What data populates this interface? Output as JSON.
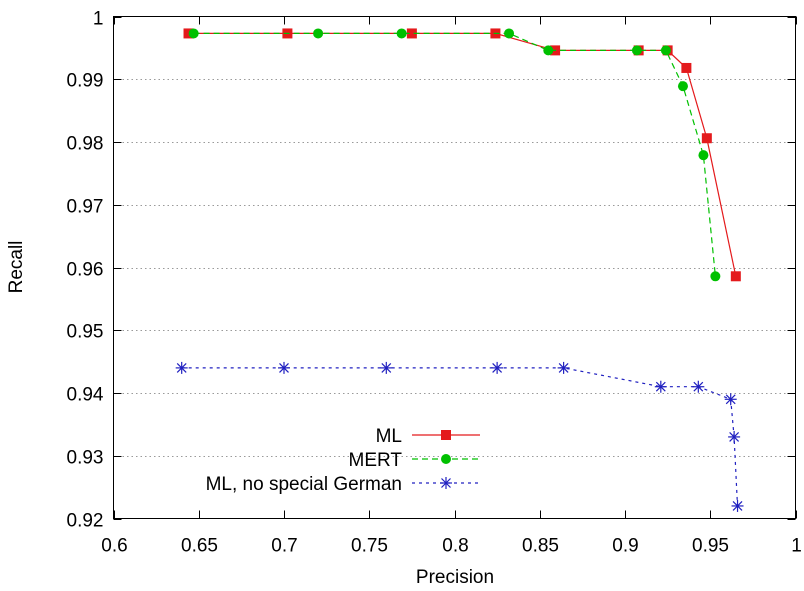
{
  "chart_data": {
    "type": "line",
    "xlabel": "Precision",
    "ylabel": "Recall",
    "xlim": [
      0.6,
      1.0
    ],
    "ylim": [
      0.92,
      1.0
    ],
    "x_ticks": [
      0.6,
      0.65,
      0.7,
      0.75,
      0.8,
      0.85,
      0.9,
      0.95,
      1.0
    ],
    "x_tick_labels": [
      "0.6",
      "0.65",
      "0.7",
      "0.75",
      "0.8",
      "0.85",
      "0.9",
      "0.95",
      "1"
    ],
    "y_ticks": [
      0.92,
      0.93,
      0.94,
      0.95,
      0.96,
      0.97,
      0.98,
      0.99,
      1.0
    ],
    "y_tick_labels": [
      "0.92",
      "0.93",
      "0.94",
      "0.95",
      "0.96",
      "0.97",
      "0.98",
      "0.99",
      "1"
    ],
    "grid": "horizontal dotted",
    "legend_position": "bottom-left",
    "series": [
      {
        "name": "ML",
        "color": "#e41a1c",
        "line": "solid",
        "marker": "square",
        "x": [
          0.644,
          0.702,
          0.775,
          0.824,
          0.859,
          0.908,
          0.925,
          0.936,
          0.948,
          0.965
        ],
        "y": [
          0.9973,
          0.9973,
          0.9973,
          0.9973,
          0.9946,
          0.9946,
          0.9946,
          0.9918,
          0.9806,
          0.9586
        ]
      },
      {
        "name": "MERT",
        "color": "#00c000",
        "line": "dashed",
        "marker": "circle",
        "x": [
          0.647,
          0.72,
          0.769,
          0.832,
          0.855,
          0.907,
          0.924,
          0.934,
          0.946,
          0.953
        ],
        "y": [
          0.9973,
          0.9973,
          0.9973,
          0.9973,
          0.9946,
          0.9946,
          0.9946,
          0.9889,
          0.9779,
          0.9586
        ]
      },
      {
        "name": "ML, no special German",
        "color": "#2020c0",
        "line": "dotted",
        "marker": "asterisk",
        "x": [
          0.64,
          0.7,
          0.76,
          0.825,
          0.864,
          0.921,
          0.943,
          0.962,
          0.964,
          0.966
        ],
        "y": [
          0.944,
          0.944,
          0.944,
          0.944,
          0.944,
          0.941,
          0.941,
          0.939,
          0.933,
          0.922
        ]
      }
    ]
  }
}
